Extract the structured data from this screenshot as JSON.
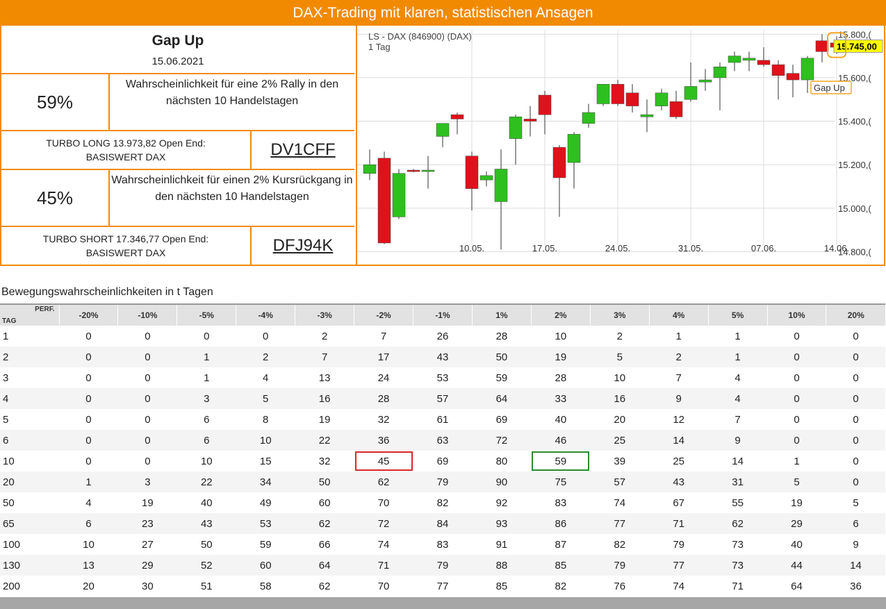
{
  "header": {
    "title": "DAX-Trading mit klaren, statistischen Ansagen"
  },
  "signal": {
    "name": "Gap Up",
    "date": "15.06.2021"
  },
  "long": {
    "probability": "59%",
    "description": "Wahrscheinlichkeit für eine 2% Rally in den nächsten 10 Handelstagen",
    "product_line1": "TURBO LONG 13.973,82 Open End:",
    "product_line2": "BASISWERT DAX",
    "code": "DV1CFF"
  },
  "short": {
    "probability": "45%",
    "description": "Wahrscheinlichkeit für einen 2% Kursrückgang in den nächsten 10 Handelstagen",
    "product_line1": "TURBO SHORT 17.346,77 Open End:",
    "product_line2": "BASISWERT DAX",
    "code": "DFJ94K"
  },
  "chart_data": {
    "type": "candlestick",
    "title": "LS - DAX (846900) (DAX)",
    "subtitle": "1 Tag",
    "ylim": [
      14760,
      15820
    ],
    "yticks": [
      14800,
      15000,
      15200,
      15400,
      15600,
      15800
    ],
    "ytick_labels": [
      "14.800,(",
      "15.000,(",
      "15.200,(",
      "15.400,(",
      "15.600,(",
      "15.800,("
    ],
    "xticks": [
      {
        "index": 7,
        "label": "10.05."
      },
      {
        "index": 12,
        "label": "17.05."
      },
      {
        "index": 17,
        "label": "24.05."
      },
      {
        "index": 22,
        "label": "31.05."
      },
      {
        "index": 27,
        "label": "07.06."
      },
      {
        "index": 32,
        "label": "14.06."
      }
    ],
    "last_price_label": "15.745,00",
    "last_price": 15745,
    "annotation": "Gap Up",
    "candles": [
      {
        "date": "29.04.",
        "open": 15160,
        "high": 15270,
        "low": 15130,
        "close": 15200
      },
      {
        "date": "30.04.",
        "open": 15230,
        "high": 15260,
        "low": 14835,
        "close": 14840
      },
      {
        "date": "03.05.",
        "open": 14960,
        "high": 15180,
        "low": 14950,
        "close": 15160
      },
      {
        "date": "04.05.",
        "open": 15175,
        "high": 15180,
        "low": 15165,
        "close": 15170
      },
      {
        "date": "05.05.",
        "open": 15170,
        "high": 15240,
        "low": 15090,
        "close": 15175
      },
      {
        "date": "06.05.",
        "open": 15330,
        "high": 15390,
        "low": 15280,
        "close": 15390
      },
      {
        "date": "07.05.",
        "open": 15430,
        "high": 15440,
        "low": 15340,
        "close": 15410
      },
      {
        "date": "10.05.",
        "open": 15240,
        "high": 15260,
        "low": 14990,
        "close": 15090
      },
      {
        "date": "11.05.",
        "open": 15130,
        "high": 15170,
        "low": 15100,
        "close": 15150
      },
      {
        "date": "12.05.",
        "open": 15030,
        "high": 15270,
        "low": 14810,
        "close": 15180
      },
      {
        "date": "13.05.",
        "open": 15320,
        "high": 15430,
        "low": 15200,
        "close": 15420
      },
      {
        "date": "14.05.",
        "open": 15410,
        "high": 15470,
        "low": 15330,
        "close": 15400
      },
      {
        "date": "17.05.",
        "open": 15520,
        "high": 15540,
        "low": 15340,
        "close": 15430
      },
      {
        "date": "18.05.",
        "open": 15280,
        "high": 15290,
        "low": 14960,
        "close": 15140
      },
      {
        "date": "19.05.",
        "open": 15210,
        "high": 15350,
        "low": 15090,
        "close": 15340
      },
      {
        "date": "20.05.",
        "open": 15390,
        "high": 15480,
        "low": 15370,
        "close": 15440
      },
      {
        "date": "21.05.",
        "open": 15480,
        "high": 15570,
        "low": 15470,
        "close": 15570
      },
      {
        "date": "24.05.",
        "open": 15570,
        "high": 15590,
        "low": 15470,
        "close": 15480
      },
      {
        "date": "25.05.",
        "open": 15530,
        "high": 15570,
        "low": 15440,
        "close": 15470
      },
      {
        "date": "26.05.",
        "open": 15420,
        "high": 15500,
        "low": 15350,
        "close": 15430
      },
      {
        "date": "27.05.",
        "open": 15470,
        "high": 15550,
        "low": 15450,
        "close": 15530
      },
      {
        "date": "28.05.",
        "open": 15490,
        "high": 15540,
        "low": 15410,
        "close": 15420
      },
      {
        "date": "31.05.",
        "open": 15500,
        "high": 15670,
        "low": 15490,
        "close": 15560
      },
      {
        "date": "01.06.",
        "open": 15580,
        "high": 15640,
        "low": 15540,
        "close": 15590
      },
      {
        "date": "02.06.",
        "open": 15600,
        "high": 15670,
        "low": 15450,
        "close": 15650
      },
      {
        "date": "03.06.",
        "open": 15670,
        "high": 15720,
        "low": 15630,
        "close": 15700
      },
      {
        "date": "04.06.",
        "open": 15680,
        "high": 15720,
        "low": 15630,
        "close": 15690
      },
      {
        "date": "07.06.",
        "open": 15680,
        "high": 15740,
        "low": 15650,
        "close": 15660
      },
      {
        "date": "08.06.",
        "open": 15660,
        "high": 15680,
        "low": 15500,
        "close": 15610
      },
      {
        "date": "09.06.",
        "open": 15620,
        "high": 15660,
        "low": 15510,
        "close": 15590
      },
      {
        "date": "10.06.",
        "open": 15590,
        "high": 15700,
        "low": 15530,
        "close": 15690
      },
      {
        "date": "11.06.",
        "open": 15770,
        "high": 15800,
        "low": 15670,
        "close": 15720
      },
      {
        "date": "14.06.",
        "open": 15760,
        "high": 15790,
        "low": 15710,
        "close": 15740
      }
    ]
  },
  "table": {
    "title": "Bewegungswahrscheinlichkeiten in t Tagen",
    "corner_top": "PERF.",
    "corner_bottom": "TAG",
    "columns": [
      "-20%",
      "-10%",
      "-5%",
      "-4%",
      "-3%",
      "-2%",
      "-1%",
      "1%",
      "2%",
      "3%",
      "4%",
      "5%",
      "10%",
      "20%"
    ],
    "rows": [
      {
        "day": "1",
        "values": [
          "0",
          "0",
          "0",
          "0",
          "2",
          "7",
          "26",
          "28",
          "10",
          "2",
          "1",
          "1",
          "0",
          "0"
        ]
      },
      {
        "day": "2",
        "values": [
          "0",
          "0",
          "1",
          "2",
          "7",
          "17",
          "43",
          "50",
          "19",
          "5",
          "2",
          "1",
          "0",
          "0"
        ]
      },
      {
        "day": "3",
        "values": [
          "0",
          "0",
          "1",
          "4",
          "13",
          "24",
          "53",
          "59",
          "28",
          "10",
          "7",
          "4",
          "0",
          "0"
        ]
      },
      {
        "day": "4",
        "values": [
          "0",
          "0",
          "3",
          "5",
          "16",
          "28",
          "57",
          "64",
          "33",
          "16",
          "9",
          "4",
          "0",
          "0"
        ]
      },
      {
        "day": "5",
        "values": [
          "0",
          "0",
          "6",
          "8",
          "19",
          "32",
          "61",
          "69",
          "40",
          "20",
          "12",
          "7",
          "0",
          "0"
        ]
      },
      {
        "day": "6",
        "values": [
          "0",
          "0",
          "6",
          "10",
          "22",
          "36",
          "63",
          "72",
          "46",
          "25",
          "14",
          "9",
          "0",
          "0"
        ]
      },
      {
        "day": "10",
        "values": [
          "0",
          "0",
          "10",
          "15",
          "32",
          "45",
          "69",
          "80",
          "59",
          "39",
          "25",
          "14",
          "1",
          "0"
        ]
      },
      {
        "day": "20",
        "values": [
          "1",
          "3",
          "22",
          "34",
          "50",
          "62",
          "79",
          "90",
          "75",
          "57",
          "43",
          "31",
          "5",
          "0"
        ]
      },
      {
        "day": "50",
        "values": [
          "4",
          "19",
          "40",
          "49",
          "60",
          "70",
          "82",
          "92",
          "83",
          "74",
          "67",
          "55",
          "19",
          "5"
        ]
      },
      {
        "day": "65",
        "values": [
          "6",
          "23",
          "43",
          "53",
          "62",
          "72",
          "84",
          "93",
          "86",
          "77",
          "71",
          "62",
          "29",
          "6"
        ]
      },
      {
        "day": "100",
        "values": [
          "10",
          "27",
          "50",
          "59",
          "66",
          "74",
          "83",
          "91",
          "87",
          "82",
          "79",
          "73",
          "40",
          "9"
        ]
      },
      {
        "day": "130",
        "values": [
          "13",
          "29",
          "52",
          "60",
          "64",
          "71",
          "79",
          "88",
          "85",
          "79",
          "77",
          "73",
          "44",
          "14"
        ]
      },
      {
        "day": "200",
        "values": [
          "20",
          "30",
          "51",
          "58",
          "62",
          "70",
          "77",
          "85",
          "82",
          "76",
          "74",
          "71",
          "64",
          "36"
        ]
      }
    ],
    "highlight_row_day": "10",
    "highlight_red_column": "-2%",
    "highlight_green_column": "2%"
  },
  "colors": {
    "orange": "#f28a00",
    "up": "#2ec01f",
    "down": "#e0111b",
    "highlight_red": "#d9262b",
    "highlight_green": "#2d8a2d"
  }
}
